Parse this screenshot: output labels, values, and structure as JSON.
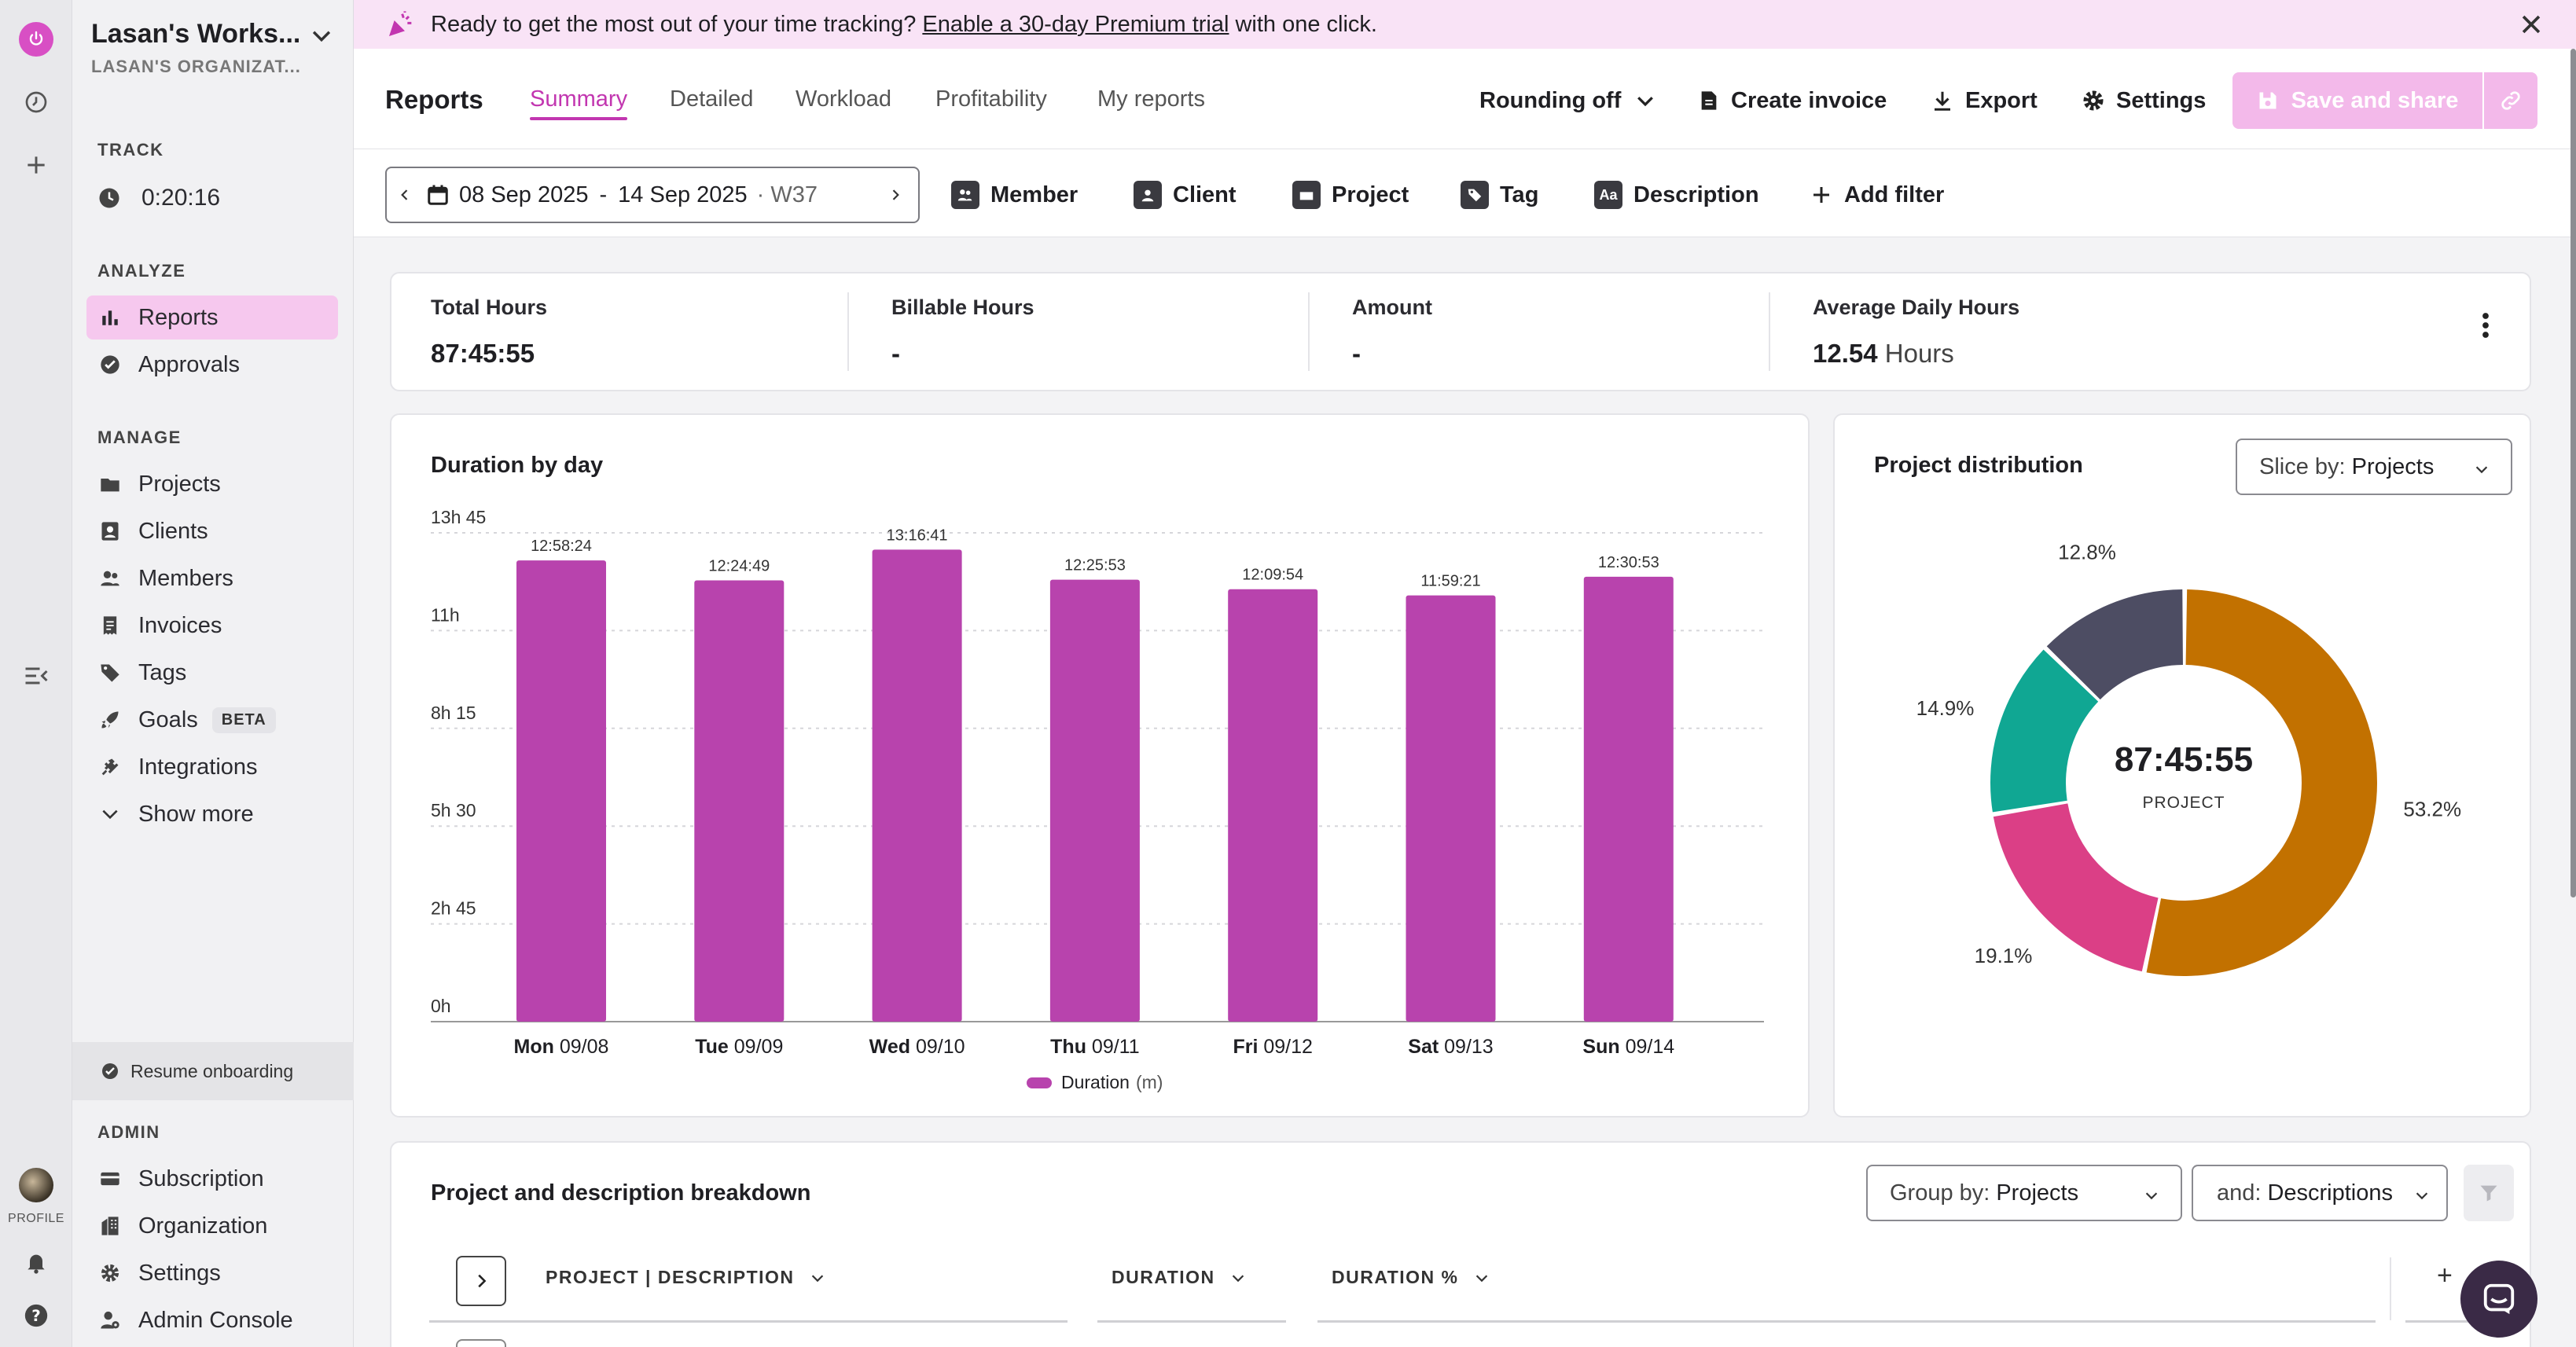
{
  "banner": {
    "text_before": "Ready to get the most out of your time tracking?",
    "link": "Enable a 30-day Premium trial",
    "text_after": "with one click."
  },
  "workspace": {
    "name": "Lasan's Works...",
    "org": "LASAN'S ORGANIZAT..."
  },
  "rail": {
    "profile_label": "PROFILE"
  },
  "sidebar": {
    "track_heading": "TRACK",
    "timer": "0:20:16",
    "analyze_heading": "ANALYZE",
    "analyze_items": [
      {
        "label": "Reports"
      },
      {
        "label": "Approvals"
      }
    ],
    "manage_heading": "MANAGE",
    "manage_items": [
      {
        "label": "Projects"
      },
      {
        "label": "Clients"
      },
      {
        "label": "Members"
      },
      {
        "label": "Invoices"
      },
      {
        "label": "Tags"
      },
      {
        "label": "Goals",
        "badge": "BETA"
      },
      {
        "label": "Integrations"
      },
      {
        "label": "Show more"
      }
    ],
    "resume_label": "Resume onboarding",
    "admin_heading": "ADMIN",
    "admin_items": [
      {
        "label": "Subscription"
      },
      {
        "label": "Organization"
      },
      {
        "label": "Settings"
      },
      {
        "label": "Admin Console"
      }
    ]
  },
  "header": {
    "title": "Reports",
    "tabs": [
      {
        "label": "Summary"
      },
      {
        "label": "Detailed"
      },
      {
        "label": "Workload"
      },
      {
        "label": "Profitability"
      },
      {
        "label": "My reports"
      }
    ],
    "rounding": "Rounding off",
    "create_invoice": "Create invoice",
    "export": "Export",
    "settings": "Settings",
    "save_share": "Save and share"
  },
  "filters": {
    "date_start": "08 Sep 2025",
    "date_sep": "-",
    "date_end": "14 Sep 2025",
    "week": "· W37",
    "items": [
      {
        "label": "Member"
      },
      {
        "label": "Client"
      },
      {
        "label": "Project"
      },
      {
        "label": "Tag"
      },
      {
        "label": "Description"
      },
      {
        "label": "Add filter"
      }
    ],
    "description_icon_text": "Aa"
  },
  "stats": [
    {
      "label": "Total Hours",
      "value": "87:45:55",
      "unit": ""
    },
    {
      "label": "Billable Hours",
      "value": "-",
      "unit": ""
    },
    {
      "label": "Amount",
      "value": "-",
      "unit": ""
    },
    {
      "label": "Average Daily Hours",
      "value": "12.54",
      "unit": "Hours"
    }
  ],
  "duration_card": {
    "title": "Duration by day",
    "legend": "Duration",
    "legend_unit": "(m)"
  },
  "distribution_card": {
    "title": "Project distribution",
    "slice_label": "Slice by:",
    "slice_value": "Projects",
    "center_value": "87:45:55",
    "center_label": "PROJECT"
  },
  "breakdown_card": {
    "title": "Project and description breakdown",
    "group_label": "Group by:",
    "group_value": "Projects",
    "and_label": "and:",
    "and_value": "Descriptions",
    "columns": [
      "PROJECT | DESCRIPTION",
      "DURATION",
      "DURATION %"
    ],
    "add_column": "+"
  },
  "colors": {
    "accent": "#c236b0",
    "bar": "#b843ad",
    "banner_bg": "#f9e3f6",
    "donut": [
      "#c27100",
      "#db3f86",
      "#10a793",
      "#4d4d63"
    ]
  },
  "chart_data": [
    {
      "type": "bar",
      "title": "Duration by day",
      "categories": [
        {
          "day": "Mon",
          "date": "09/08"
        },
        {
          "day": "Tue",
          "date": "09/09"
        },
        {
          "day": "Wed",
          "date": "09/10"
        },
        {
          "day": "Thu",
          "date": "09/11"
        },
        {
          "day": "Fri",
          "date": "09/12"
        },
        {
          "day": "Sat",
          "date": "09/13"
        },
        {
          "day": "Sun",
          "date": "09/14"
        }
      ],
      "values_minutes": [
        778.4,
        744.8,
        796.7,
        745.9,
        729.9,
        719.4,
        750.9
      ],
      "data_labels": [
        "12:58:24",
        "12:24:49",
        "13:16:41",
        "12:25:53",
        "12:09:54",
        "11:59:21",
        "12:30:53"
      ],
      "y_ticks": [
        "0h",
        "2h 45",
        "5h 30",
        "8h 15",
        "11h",
        "13h 45"
      ],
      "ylim": [
        0,
        825
      ],
      "series_name": "Duration (m)",
      "grid": true
    },
    {
      "type": "pie",
      "title": "Project distribution",
      "slices": [
        {
          "percent": 53.2,
          "label": "53.2%",
          "color": "#c27100"
        },
        {
          "percent": 19.1,
          "label": "19.1%",
          "color": "#db3f86"
        },
        {
          "percent": 14.9,
          "label": "14.9%",
          "color": "#10a793"
        },
        {
          "percent": 12.8,
          "label": "12.8%",
          "color": "#4d4d63"
        }
      ],
      "center_text": "87:45:55",
      "center_subtext": "PROJECT"
    }
  ]
}
